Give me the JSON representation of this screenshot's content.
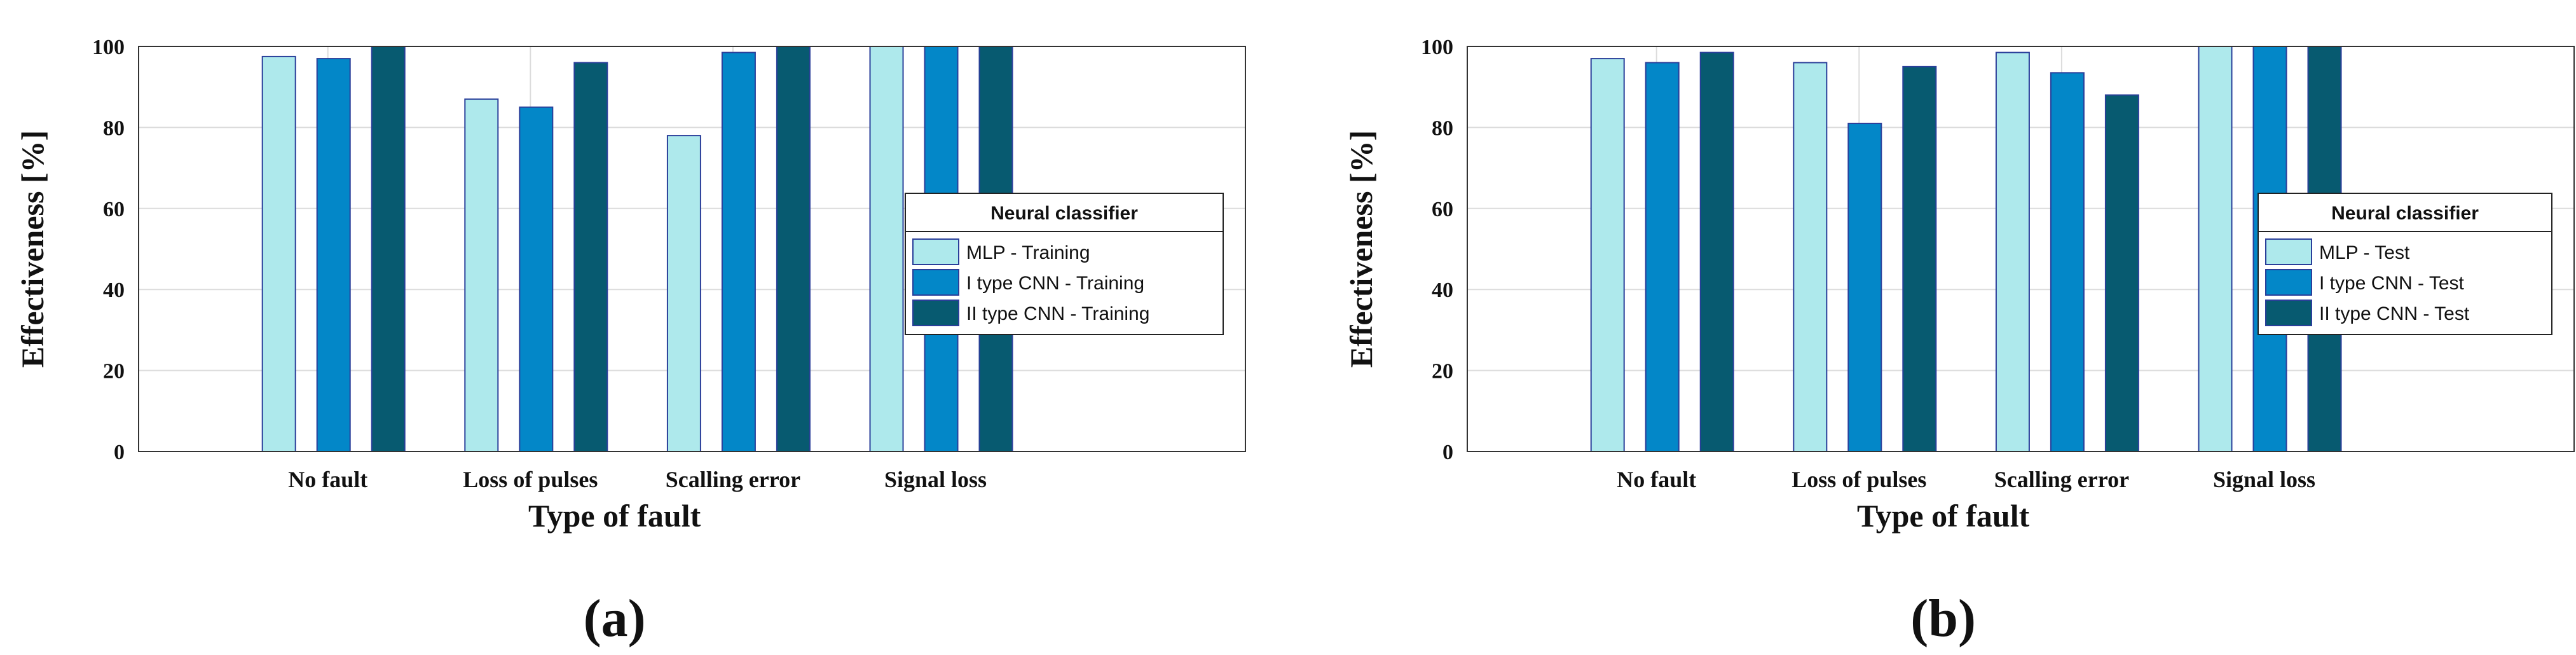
{
  "chart_data": [
    {
      "type": "bar",
      "panel_label": "(a)",
      "categories": [
        "No fault",
        "Loss of pulses",
        "Scalling error",
        "Signal loss"
      ],
      "xlabel": "Type of fault",
      "ylabel": "Effectiveness [%]",
      "ylim": [
        0,
        100
      ],
      "yticks": [
        0,
        20,
        40,
        60,
        80,
        100
      ],
      "grid": true,
      "legend": {
        "title": "Neural classifier",
        "placement": "right"
      },
      "series": [
        {
          "name": "MLP - Training",
          "color": "#aee9ec",
          "values": [
            97.5,
            87,
            78,
            100
          ]
        },
        {
          "name": "I type CNN - Training",
          "color": "#0387c8",
          "values": [
            97,
            85,
            98.5,
            100
          ]
        },
        {
          "name": "II type CNN - Training",
          "color": "#075a70",
          "values": [
            100,
            96,
            100,
            100
          ]
        }
      ]
    },
    {
      "type": "bar",
      "panel_label": "(b)",
      "categories": [
        "No fault",
        "Loss of pulses",
        "Scalling error",
        "Signal loss"
      ],
      "xlabel": "Type of fault",
      "ylabel": "Effectiveness [%]",
      "ylim": [
        0,
        100
      ],
      "yticks": [
        0,
        20,
        40,
        60,
        80,
        100
      ],
      "grid": true,
      "legend": {
        "title": "Neural classifier",
        "placement": "right"
      },
      "series": [
        {
          "name": "MLP - Test",
          "color": "#aee9ec",
          "values": [
            97,
            96,
            98.5,
            100
          ]
        },
        {
          "name": "I type CNN - Test",
          "color": "#0387c8",
          "values": [
            96,
            81,
            93.5,
            100
          ]
        },
        {
          "name": "II type CNN - Test",
          "color": "#075a70",
          "values": [
            98.5,
            95,
            88,
            100
          ]
        }
      ]
    }
  ]
}
